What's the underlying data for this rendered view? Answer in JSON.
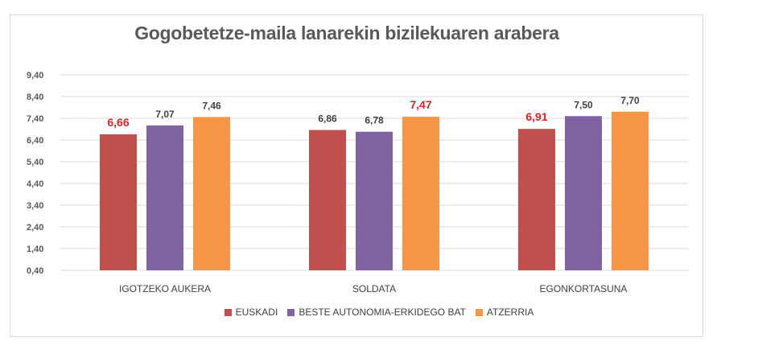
{
  "chart_data": {
    "type": "bar",
    "title": "Gogobetetze-maila lanarekin bizilekuaren arabera",
    "categories": [
      "IGOTZEKO AUKERA",
      "SOLDATA",
      "EGONKORTASUNA"
    ],
    "series": [
      {
        "name": "EUSKADI",
        "color": "#c0504d",
        "values": [
          6.66,
          6.86,
          6.91
        ],
        "labels": [
          "6,66",
          "6,86",
          "6,91"
        ],
        "highlight": [
          true,
          false,
          true
        ]
      },
      {
        "name": "BESTE AUTONOMIA-ERKIDEGO BAT",
        "color": "#8064a2",
        "values": [
          7.07,
          6.78,
          7.5
        ],
        "labels": [
          "7,07",
          "6,78",
          "7,50"
        ],
        "highlight": [
          false,
          false,
          false
        ]
      },
      {
        "name": "ATZERRIA",
        "color": "#f79646",
        "values": [
          7.46,
          7.47,
          7.7
        ],
        "labels": [
          "7,46",
          "7,47",
          "7,70"
        ],
        "highlight": [
          false,
          true,
          false
        ]
      }
    ],
    "yticks": [
      "0,40",
      "1,40",
      "2,40",
      "3,40",
      "4,40",
      "5,40",
      "6,40",
      "7,40",
      "8,40",
      "9,40"
    ],
    "ylim": [
      0.4,
      9.4
    ],
    "xlabel": "",
    "ylabel": "",
    "grid": true,
    "legend": "bottom",
    "highlight_color": "#e0202a"
  }
}
